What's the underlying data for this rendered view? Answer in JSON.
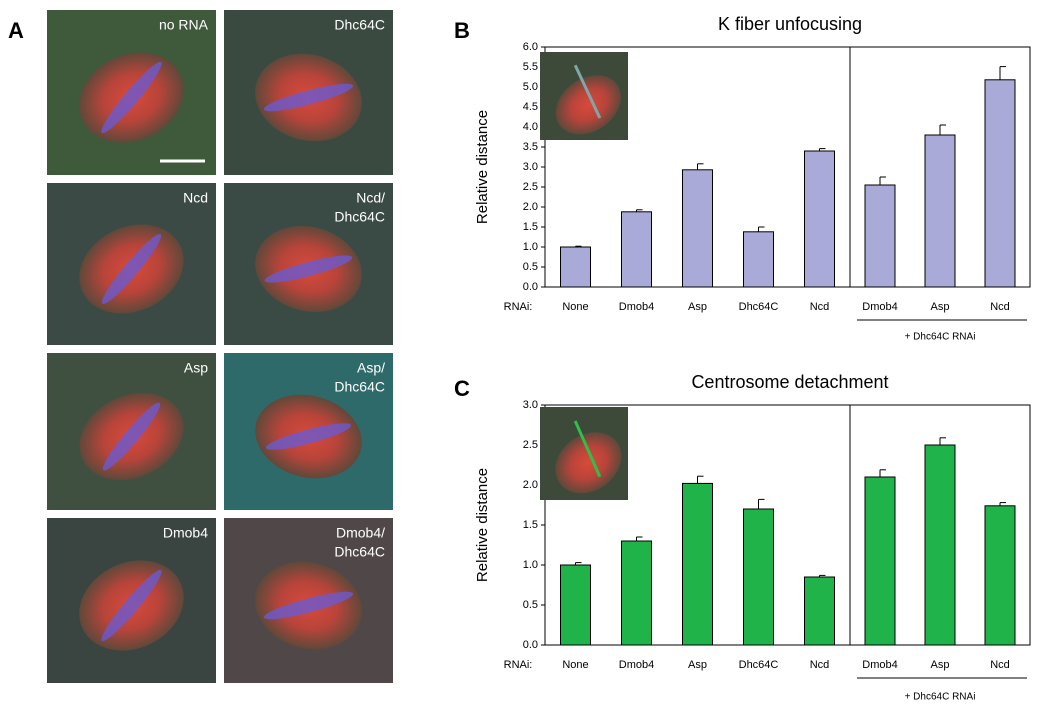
{
  "panel_labels": [
    "A",
    "B",
    "C"
  ],
  "micrographs": [
    [
      "no RNA"
    ],
    [
      "Dhc64C"
    ],
    [
      "Ncd"
    ],
    [
      "Ncd/",
      "Dhc64C"
    ],
    [
      "Asp"
    ],
    [
      "Asp/",
      "Dhc64C"
    ],
    [
      "Dmob4"
    ],
    [
      "Dmob4/",
      "Dhc64C"
    ]
  ],
  "chart_data": [
    {
      "type": "bar",
      "title": "K fiber unfocusing",
      "y_label": "Relative distance",
      "x_prefix": "RNAi:",
      "categories": [
        "None",
        "Dmob4",
        "Asp",
        "Dhc64C",
        "Ncd",
        "Dmob4",
        "Asp",
        "Ncd"
      ],
      "values": [
        1.0,
        1.88,
        2.93,
        1.38,
        3.4,
        2.55,
        3.8,
        5.18
      ],
      "errors": [
        0.02,
        0.05,
        0.15,
        0.12,
        0.06,
        0.2,
        0.25,
        0.33
      ],
      "group_label": "+ Dhc64C RNAi",
      "color": "#a9aad8",
      "ylim": [
        0,
        6
      ],
      "yticks": [
        {
          "value": 0,
          "label": "0.0"
        },
        {
          "value": 0.5,
          "label": "0.5"
        },
        {
          "value": 1,
          "label": "1.0"
        },
        {
          "value": 1.5,
          "label": "1.5"
        },
        {
          "value": 2,
          "label": "2.0"
        },
        {
          "value": 2.5,
          "label": "2.5"
        },
        {
          "value": 3,
          "label": "3.0"
        },
        {
          "value": 3.5,
          "label": "3.5"
        },
        {
          "value": 4,
          "label": "4.0"
        },
        {
          "value": 4.5,
          "label": "4.5"
        },
        {
          "value": 5,
          "label": "5.0"
        },
        {
          "value": 5.5,
          "label": "5.5"
        },
        {
          "value": 6,
          "label": "6.0"
        }
      ]
    },
    {
      "type": "bar",
      "title": "Centrosome detachment",
      "y_label": "Relative distance",
      "x_prefix": "RNAi:",
      "categories": [
        "None",
        "Dmob4",
        "Asp",
        "Dhc64C",
        "Ncd",
        "Dmob4",
        "Asp",
        "Ncd"
      ],
      "values": [
        1.0,
        1.3,
        2.02,
        1.7,
        0.85,
        2.1,
        2.5,
        1.74
      ],
      "errors": [
        0.03,
        0.05,
        0.09,
        0.12,
        0.02,
        0.09,
        0.09,
        0.04
      ],
      "group_label": "+ Dhc64C RNAi",
      "color": "#1fb34a",
      "ylim": [
        0,
        3
      ],
      "yticks": [
        {
          "value": 0,
          "label": "0.0"
        },
        {
          "value": 0.5,
          "label": "0.5"
        },
        {
          "value": 1,
          "label": "1.0"
        },
        {
          "value": 1.5,
          "label": "1.5"
        },
        {
          "value": 2,
          "label": "2.0"
        },
        {
          "value": 2.5,
          "label": "2.5"
        },
        {
          "value": 3,
          "label": "3.0"
        }
      ]
    }
  ]
}
